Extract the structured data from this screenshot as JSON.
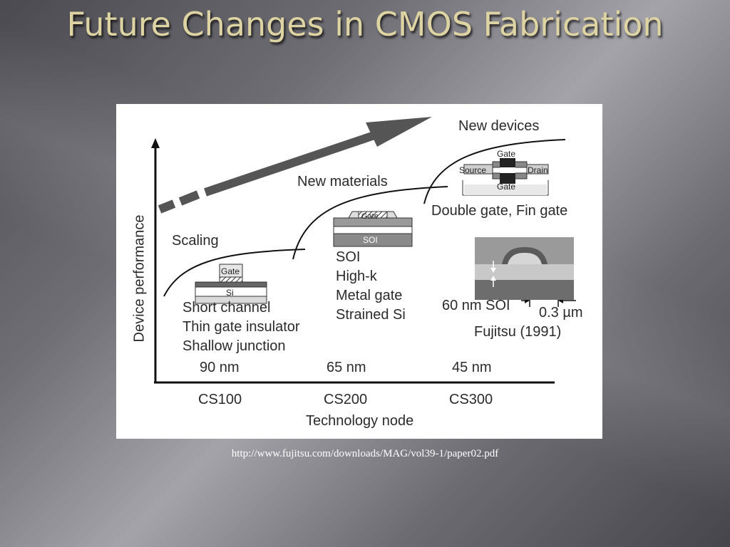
{
  "title": "Future Changes in CMOS Fabrication",
  "figure": {
    "y_axis_label": "Device performance",
    "x_axis_label": "Technology node",
    "nodes": [
      {
        "nm": "90 nm",
        "code": "CS100"
      },
      {
        "nm": "65 nm",
        "code": "CS200"
      },
      {
        "nm": "45 nm",
        "code": "CS300"
      }
    ],
    "stages": {
      "scaling": {
        "label": "Scaling",
        "items": [
          "Short channel",
          "Thin gate insulator",
          "Shallow junction"
        ],
        "diagram": {
          "gate": "Gate",
          "substrate": "Si"
        }
      },
      "materials": {
        "label": "New materials",
        "items": [
          "SOI",
          "High-k",
          "Metal gate",
          "Strained Si"
        ],
        "diagram": {
          "gate": "Gate",
          "substrate": "SOI"
        }
      },
      "devices": {
        "label": "New devices",
        "caption": "Double gate, Fin gate",
        "diagram": {
          "gate_top": "Gate",
          "gate_bottom": "Gate",
          "source": "Source",
          "drain": "Drain"
        }
      }
    },
    "photo": {
      "soi_label": "60 nm SOI",
      "width_label": "0.3 µm",
      "credit": "Fujitsu (1991)"
    }
  },
  "source_url": "http://www.fujitsu.com/downloads/MAG/vol39-1/paper02.pdf"
}
